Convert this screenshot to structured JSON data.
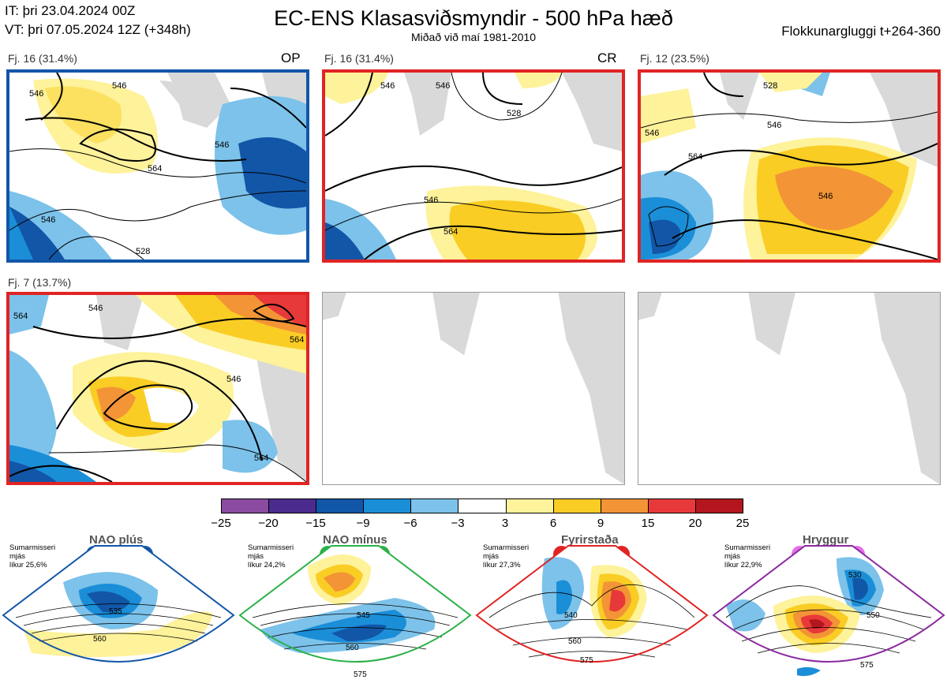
{
  "header": {
    "it": "IT: þri 23.04.2024 00Z",
    "vt": "VT: þri 07.05.2024 12Z  (+348h)",
    "title": "EC-ENS Klasasviðsmyndir - 500 hPa hæð",
    "subtitle": "Miðað við maí 1981-2010",
    "window": "Flokkunargluggi t+264-360"
  },
  "panels": [
    {
      "label": "Fj. 16 (31.4%)",
      "tag": "OP",
      "frame": "#1256a8",
      "contours": [
        "546",
        "546",
        "564",
        "546",
        "528",
        "546"
      ]
    },
    {
      "label": "Fj. 16 (31.4%)",
      "tag": "CR",
      "frame": "#e02424",
      "contours": [
        "546",
        "546",
        "564",
        "546",
        "528"
      ]
    },
    {
      "label": "Fj. 12 (23.5%)",
      "tag": "",
      "frame": "#e02424",
      "contours": [
        "528",
        "546",
        "546",
        "564",
        "546"
      ]
    },
    {
      "label": "Fj. 7 (13.7%)",
      "tag": "",
      "frame": "#e02424",
      "contours": [
        "564",
        "546",
        "564",
        "564",
        "546"
      ]
    }
  ],
  "colorbar": {
    "colors": [
      "#8a4ba0",
      "#4b2b8e",
      "#1256a8",
      "#1b8ed8",
      "#7cc2ea",
      "#ffffff",
      "#fef29a",
      "#f9cd24",
      "#f39436",
      "#e8393a",
      "#b4161f"
    ],
    "ticks": [
      "−25",
      "−20",
      "−15",
      "−9",
      "−6",
      "−3",
      "3",
      "6",
      "9",
      "15",
      "20",
      "25"
    ]
  },
  "regimes": [
    {
      "title": "NAO plús",
      "prob_lines": "Sumarmisseri\nmjás\nlíkur 25,6%",
      "color": "#1256a8",
      "contours": [
        "535",
        "560"
      ]
    },
    {
      "title": "NAO mínus",
      "prob_lines": "Sumarmisseri\nmjás\nlíkur 24,2%",
      "color": "#2bb14a",
      "contours": [
        "545",
        "560",
        "575"
      ]
    },
    {
      "title": "Fyrirstaða",
      "prob_lines": "Sumarmisseri\nmjás\nlíkur 27,3%",
      "color": "#e02424",
      "contours": [
        "540",
        "560",
        "575"
      ]
    },
    {
      "title": "Hryggur",
      "prob_lines": "Sumarmisseri\nmjás\nlíkur 22,9%",
      "color": "#e46ee8",
      "frame": "#8b2a9e",
      "contours": [
        "530",
        "550",
        "575"
      ]
    }
  ]
}
